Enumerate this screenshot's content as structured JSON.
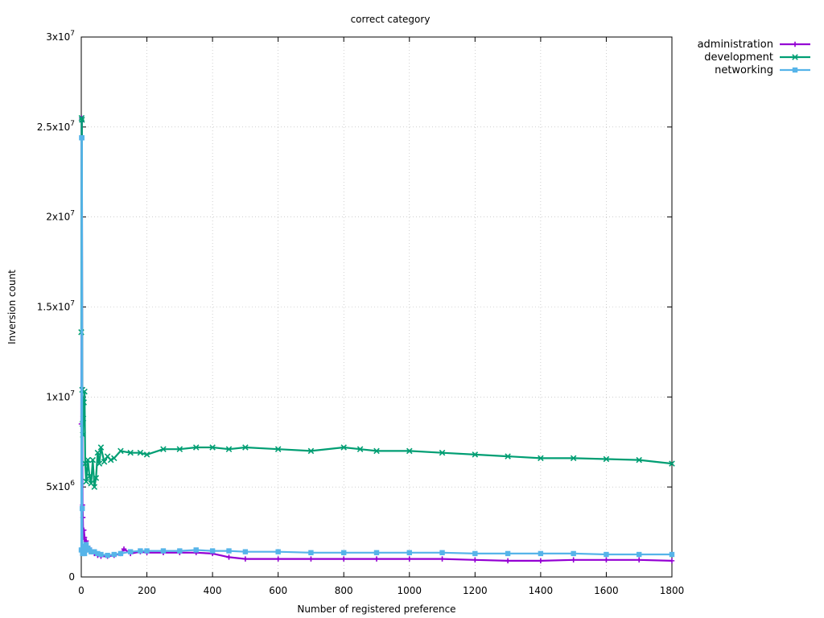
{
  "chart_data": {
    "type": "line",
    "title": "correct category",
    "xlabel": "Number of registered preference",
    "ylabel": "Inversion count",
    "xlim": [
      0,
      1800
    ],
    "ylim": [
      0,
      30000000
    ],
    "x_ticks": [
      0,
      200,
      400,
      600,
      800,
      1000,
      1200,
      1400,
      1600,
      1800
    ],
    "y_ticks": [
      {
        "value": 0,
        "mantissa": "0",
        "exp": ""
      },
      {
        "value": 5000000,
        "mantissa": "5x10",
        "exp": "6"
      },
      {
        "value": 10000000,
        "mantissa": "1x10",
        "exp": "7"
      },
      {
        "value": 15000000,
        "mantissa": "1.5x10",
        "exp": "7"
      },
      {
        "value": 20000000,
        "mantissa": "2x10",
        "exp": "7"
      },
      {
        "value": 25000000,
        "mantissa": "2.5x10",
        "exp": "7"
      },
      {
        "value": 30000000,
        "mantissa": "3x10",
        "exp": "7"
      }
    ],
    "grid": true,
    "legend_position": "outside-top-right",
    "series": [
      {
        "name": "administration",
        "color": "#9400d3",
        "marker": "plus",
        "x": [
          0,
          1,
          2,
          3,
          4,
          5,
          6,
          8,
          10,
          12,
          15,
          20,
          25,
          30,
          40,
          50,
          60,
          80,
          100,
          120,
          130,
          150,
          180,
          200,
          250,
          300,
          350,
          400,
          450,
          500,
          600,
          700,
          800,
          900,
          1000,
          1100,
          1200,
          1300,
          1400,
          1500,
          1600,
          1700,
          1800
        ],
        "y": [
          8500000,
          25500000,
          25300000,
          10500000,
          4000000,
          3300000,
          2200000,
          2600000,
          2200000,
          1800000,
          2000000,
          1700000,
          1600000,
          1400000,
          1300000,
          1200000,
          1150000,
          1150000,
          1200000,
          1300000,
          1550000,
          1300000,
          1400000,
          1350000,
          1350000,
          1350000,
          1350000,
          1300000,
          1100000,
          1000000,
          1000000,
          1000000,
          1000000,
          1000000,
          1000000,
          1000000,
          950000,
          900000,
          900000,
          950000,
          950000,
          950000,
          900000
        ]
      },
      {
        "name": "development",
        "color": "#009e73",
        "marker": "cross",
        "x": [
          0,
          1,
          2,
          3,
          4,
          5,
          6,
          8,
          10,
          12,
          15,
          20,
          25,
          30,
          35,
          40,
          45,
          50,
          55,
          60,
          70,
          80,
          90,
          100,
          120,
          150,
          180,
          200,
          250,
          300,
          350,
          400,
          450,
          500,
          600,
          700,
          800,
          850,
          900,
          1000,
          1100,
          1200,
          1300,
          1400,
          1500,
          1600,
          1700,
          1800
        ],
        "y": [
          13600000,
          25500000,
          25400000,
          10400000,
          8500000,
          7900000,
          8800000,
          9700000,
          10300000,
          6300000,
          5300000,
          6500000,
          5600000,
          5200000,
          6500000,
          5000000,
          5500000,
          6900000,
          6300000,
          7200000,
          6400000,
          6700000,
          6500000,
          6600000,
          7000000,
          6900000,
          6900000,
          6800000,
          7100000,
          7100000,
          7200000,
          7200000,
          7100000,
          7200000,
          7100000,
          7000000,
          7200000,
          7100000,
          7000000,
          7000000,
          6900000,
          6800000,
          6700000,
          6600000,
          6600000,
          6550000,
          6500000,
          6300000
        ]
      },
      {
        "name": "networking",
        "color": "#56b4e9",
        "marker": "square",
        "x": [
          0,
          1,
          2,
          3,
          4,
          5,
          6,
          8,
          10,
          12,
          15,
          20,
          25,
          30,
          40,
          50,
          60,
          80,
          100,
          120,
          150,
          180,
          200,
          250,
          300,
          350,
          400,
          450,
          500,
          600,
          700,
          800,
          900,
          1000,
          1100,
          1200,
          1300,
          1400,
          1500,
          1600,
          1700,
          1800
        ],
        "y": [
          1500000,
          24400000,
          24400000,
          3800000,
          1300000,
          1400000,
          1700000,
          1500000,
          1300000,
          1500000,
          1800000,
          1600000,
          1500000,
          1400000,
          1400000,
          1300000,
          1250000,
          1200000,
          1250000,
          1300000,
          1400000,
          1450000,
          1450000,
          1450000,
          1450000,
          1500000,
          1450000,
          1450000,
          1400000,
          1400000,
          1350000,
          1350000,
          1350000,
          1350000,
          1350000,
          1300000,
          1300000,
          1300000,
          1300000,
          1250000,
          1250000,
          1250000
        ]
      }
    ]
  }
}
